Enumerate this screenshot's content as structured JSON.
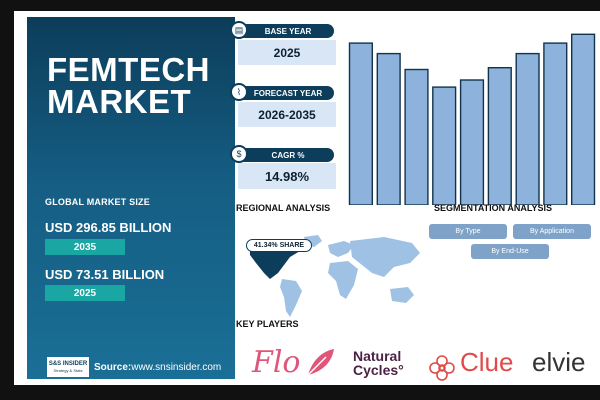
{
  "title": "FEMTECH MARKET",
  "left": {
    "global_market_size_label": "GLOBAL MARKET SIZE",
    "value_2035": "USD 296.85 BILLION",
    "year_2035": "2035",
    "value_2025": "USD 73.51 BILLION",
    "year_2025": "2025",
    "source_label": "Source:",
    "source_url": "www.snsinsider.com",
    "logo_top": "S&S INSIDER",
    "logo_bottom": "Strategy & Stats"
  },
  "cards": {
    "base_year": {
      "label": "BASE YEAR",
      "value": "2025",
      "icon": "calendar-icon"
    },
    "forecast_year": {
      "label": "FORECAST YEAR",
      "value": "2026-2035",
      "icon": "trend-icon"
    },
    "cagr": {
      "label": "CAGR %",
      "value": "14.98%",
      "icon": "money-icon"
    }
  },
  "chart_data": {
    "type": "bar",
    "values": [
      92,
      86,
      77,
      67,
      71,
      78,
      86,
      92,
      97
    ],
    "ylim": [
      0,
      100
    ],
    "bar_color": "#8db3dd",
    "bar_stroke": "#13334d"
  },
  "regional": {
    "title": "REGIONAL ANALYSIS",
    "share": "41.34% SHARE"
  },
  "segmentation": {
    "title": "SEGMENTATION ANALYSIS",
    "by_type": "By Type",
    "by_application": "By Application",
    "by_end_use": "By End-Use"
  },
  "key_players": {
    "title": "KEY PLAYERS",
    "flo": "Flo",
    "natural_line1": "Natural",
    "natural_line2": "Cycles°",
    "clue": "Clue",
    "elvie": "elvie"
  },
  "colors": {
    "panel_dark": "#0c3d5a",
    "teal": "#1aa6a3",
    "card_bg": "#d9e6f5",
    "segment_btn": "#7fa3c8",
    "map_land": "#9fc1e4",
    "map_highlight": "#0c3d5a"
  }
}
